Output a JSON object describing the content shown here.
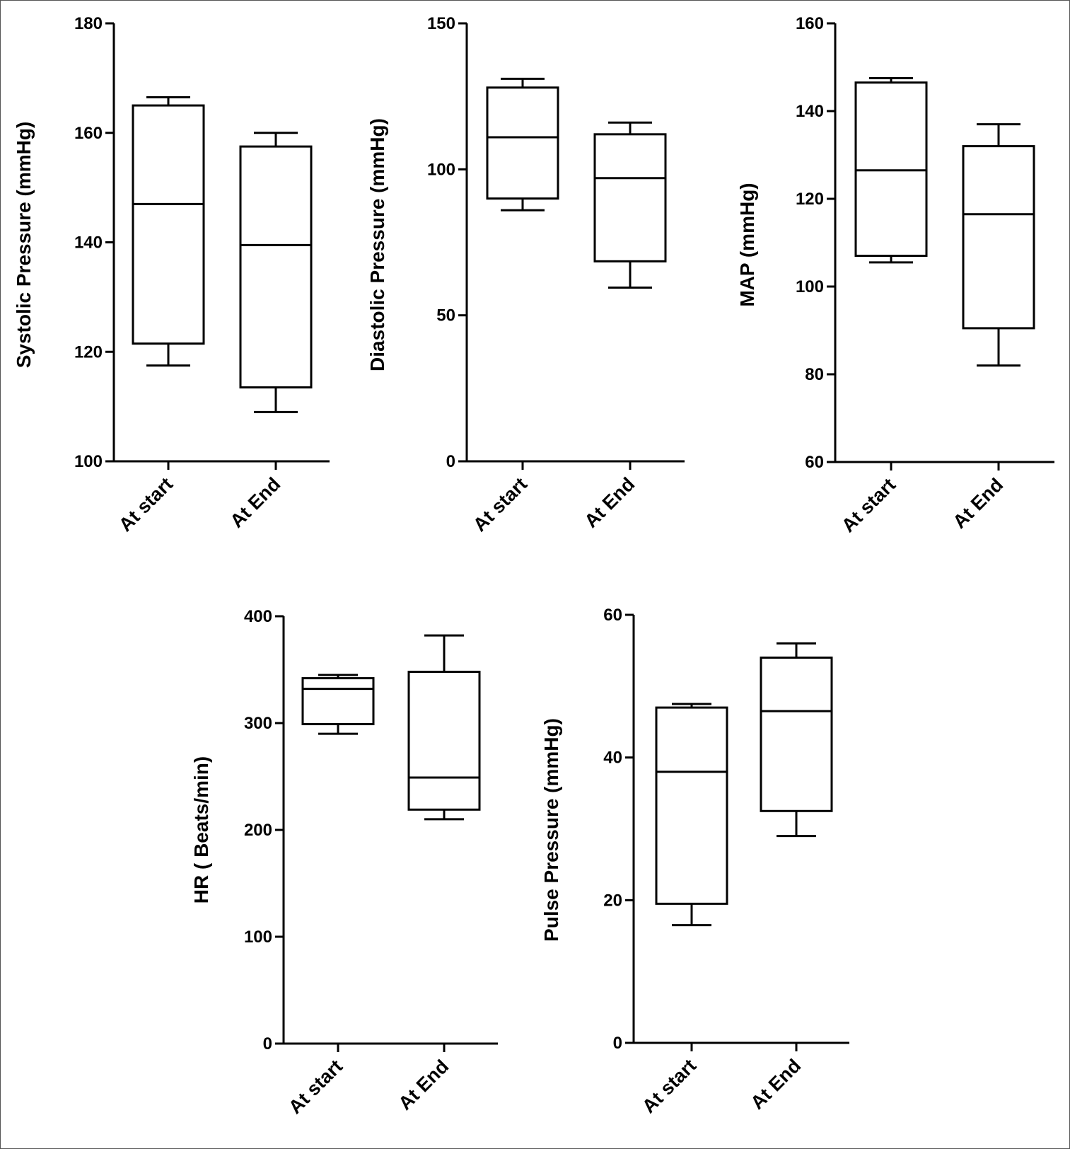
{
  "chart_data": [
    {
      "type": "box",
      "ylabel": "Systolic Pressure (mmHg)",
      "ylim": [
        100,
        180
      ],
      "yticks": [
        100,
        120,
        140,
        160,
        180
      ],
      "categories": [
        "At start",
        "At End"
      ],
      "boxes": [
        {
          "min": 117.5,
          "q1": 121.5,
          "median": 147,
          "q3": 165,
          "max": 166.5
        },
        {
          "min": 109,
          "q1": 113.5,
          "median": 139.5,
          "q3": 157.5,
          "max": 160
        }
      ]
    },
    {
      "type": "box",
      "ylabel": "Diastolic Pressure (mmHg)",
      "ylim": [
        0,
        150
      ],
      "yticks": [
        0,
        50,
        100,
        150
      ],
      "categories": [
        "At start",
        "At End"
      ],
      "boxes": [
        {
          "min": 86,
          "q1": 90,
          "median": 111,
          "q3": 128,
          "max": 131
        },
        {
          "min": 59.5,
          "q1": 68.5,
          "median": 97,
          "q3": 112,
          "max": 116
        }
      ]
    },
    {
      "type": "box",
      "ylabel": "MAP (mmHg)",
      "ylim": [
        60,
        160
      ],
      "yticks": [
        60,
        80,
        100,
        120,
        140,
        160
      ],
      "categories": [
        "At start",
        "At End"
      ],
      "boxes": [
        {
          "min": 105.5,
          "q1": 107,
          "median": 126.5,
          "q3": 146.5,
          "max": 147.5
        },
        {
          "min": 82,
          "q1": 90.5,
          "median": 116.5,
          "q3": 132,
          "max": 137
        }
      ]
    },
    {
      "type": "box",
      "ylabel": "HR ( Beats/min)",
      "ylim": [
        0,
        400
      ],
      "yticks": [
        0,
        100,
        200,
        300,
        400
      ],
      "categories": [
        "At start",
        "At End"
      ],
      "boxes": [
        {
          "min": 290,
          "q1": 299,
          "median": 332,
          "q3": 342,
          "max": 345
        },
        {
          "min": 210,
          "q1": 219,
          "median": 249,
          "q3": 348,
          "max": 382
        }
      ]
    },
    {
      "type": "box",
      "ylabel": "Pulse Pressure (mmHg)",
      "ylim": [
        0,
        60
      ],
      "yticks": [
        0,
        20,
        40,
        60
      ],
      "categories": [
        "At start",
        "At End"
      ],
      "boxes": [
        {
          "min": 16.5,
          "q1": 19.5,
          "median": 38,
          "q3": 47,
          "max": 47.5
        },
        {
          "min": 29,
          "q1": 32.5,
          "median": 46.5,
          "q3": 54,
          "max": 56
        }
      ]
    }
  ]
}
